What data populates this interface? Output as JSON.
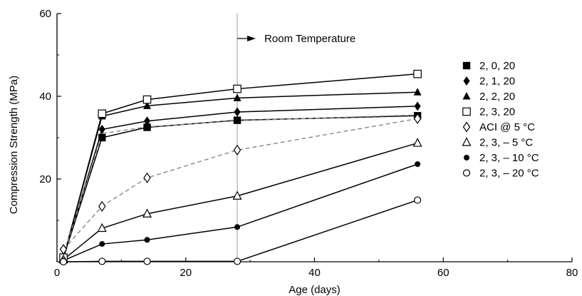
{
  "chart_data": {
    "type": "line",
    "xlabel": "Age (days)",
    "ylabel": "Compression Strength (MPa)",
    "xlim": [
      0,
      80
    ],
    "ylim": [
      0,
      60
    ],
    "x_ticks": [
      0,
      20,
      40,
      60,
      80
    ],
    "x_tick_labels": [
      "0",
      "20",
      "40",
      "60",
      "80"
    ],
    "y_ticks": [
      20,
      40,
      60
    ],
    "y_tick_labels": [
      "20",
      "40",
      "60"
    ],
    "grid": false,
    "legend_position": "right",
    "annotation": {
      "text": "Room Temperature",
      "x": 28
    },
    "series": [
      {
        "name": "2, 0, 20",
        "marker": "filled-square",
        "style": "solid",
        "x": [
          1,
          7,
          14,
          28,
          56
        ],
        "y": [
          1,
          30,
          32.5,
          34.2,
          35.3
        ]
      },
      {
        "name": "2, 1, 20",
        "marker": "filled-diamond",
        "style": "solid",
        "x": [
          1,
          7,
          14,
          28,
          56
        ],
        "y": [
          1,
          32,
          34,
          36.2,
          37.6
        ]
      },
      {
        "name": "2, 2, 20",
        "marker": "filled-triangle",
        "style": "solid",
        "x": [
          1,
          7,
          14,
          28,
          56
        ],
        "y": [
          1,
          35.2,
          37.7,
          39.6,
          41
        ]
      },
      {
        "name": "2, 3, 20",
        "marker": "open-square",
        "style": "solid",
        "x": [
          1,
          7,
          14,
          28,
          56
        ],
        "y": [
          1,
          35.8,
          39.2,
          41.8,
          45.4
        ]
      },
      {
        "name": "ACI @ 5 °C",
        "marker": "open-diamond",
        "style": "dashed",
        "x": [
          1,
          7,
          14,
          28,
          56
        ],
        "y": [
          3,
          13.4,
          20.3,
          27,
          34.6
        ]
      },
      {
        "name": "2, 3, – 5 °C",
        "marker": "open-triangle",
        "style": "solid",
        "x": [
          1,
          7,
          14,
          28,
          56
        ],
        "y": [
          0.5,
          8.1,
          11.6,
          15.9,
          28.7
        ]
      },
      {
        "name": "2, 3, – 10 °C",
        "marker": "filled-circle",
        "style": "solid",
        "x": [
          1,
          7,
          14,
          28,
          56
        ],
        "y": [
          0.3,
          4.3,
          5.3,
          8.4,
          23.6
        ]
      },
      {
        "name": "2, 3, – 20 °C",
        "marker": "open-circle",
        "style": "solid",
        "x": [
          1,
          7,
          14,
          28,
          56
        ],
        "y": [
          0,
          0.1,
          0.1,
          0.1,
          14.9
        ]
      },
      {
        "name": "",
        "marker": "none",
        "style": "dashed",
        "x": [
          1,
          7,
          14,
          28,
          56
        ],
        "y": [
          1.5,
          31,
          32.6,
          34.1,
          35.5
        ]
      }
    ]
  },
  "colors": {
    "series": "#000000",
    "dashed": "#888888",
    "annotation_line": "#999999"
  }
}
